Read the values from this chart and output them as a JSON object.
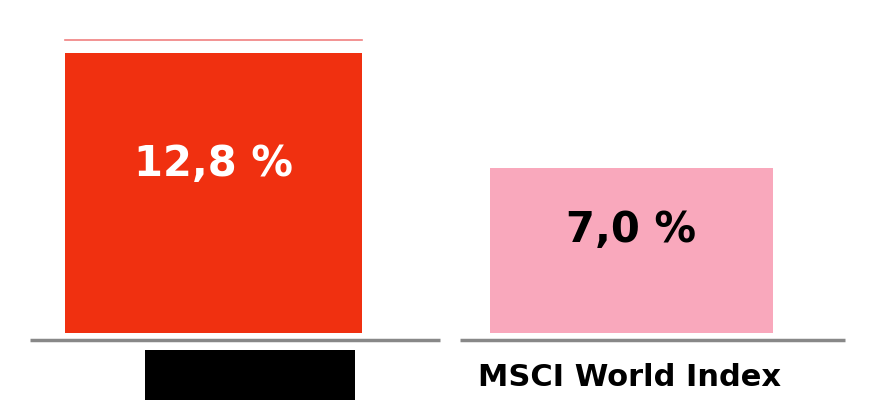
{
  "bar1_color": "#F03010",
  "bar2_color": "#F9A8BC",
  "label1": "12,8 %",
  "label2": "7,0 %",
  "label1_color": "white",
  "label2_color": "black",
  "xlabel_right": "MSCI World Index",
  "background_color": "#ffffff",
  "separator_color": "#888888",
  "top_line_color": "#F08080",
  "label_fontsize": 30,
  "xlabel_fontsize": 22,
  "black_box_color": "#000000"
}
